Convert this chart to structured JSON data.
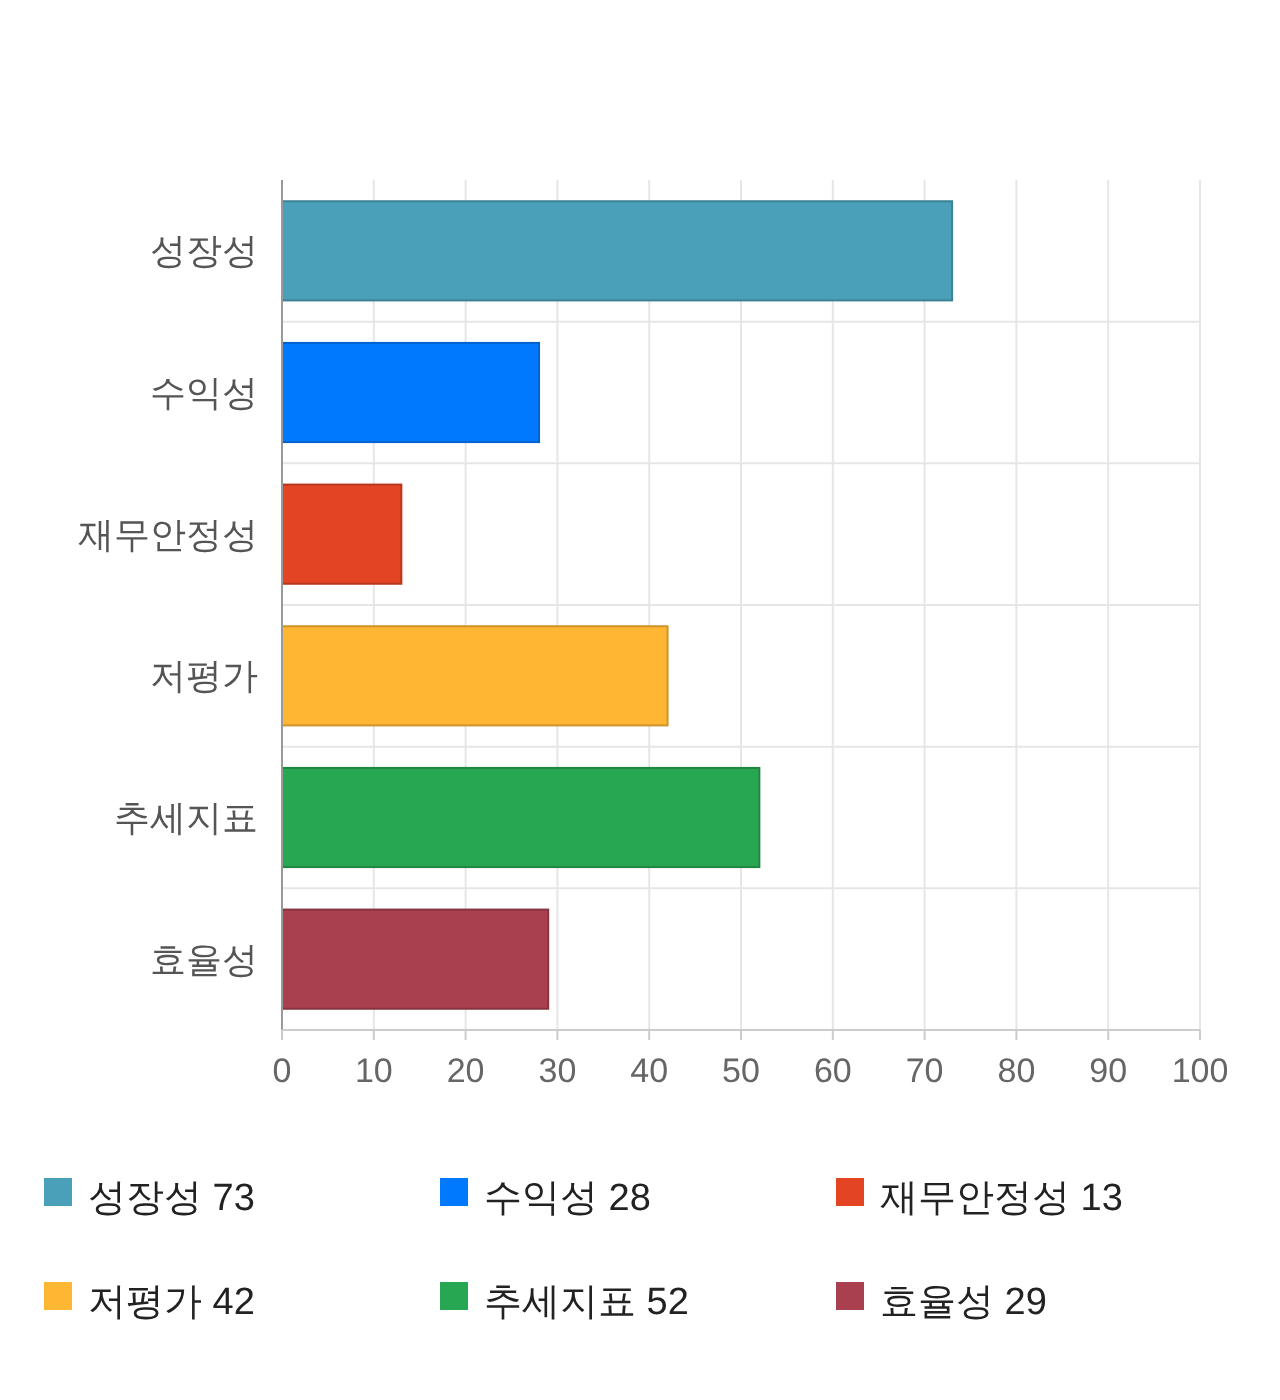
{
  "chart_data": {
    "type": "bar",
    "orientation": "horizontal",
    "categories": [
      "성장성",
      "수익성",
      "재무안정성",
      "저평가",
      "추세지표",
      "효율성"
    ],
    "series": [
      {
        "name": "성장성 73",
        "color": "#4aa0b9",
        "values": [
          73,
          null,
          null,
          null,
          null,
          null
        ]
      },
      {
        "name": "수익성 28",
        "color": "#0079ff",
        "values": [
          null,
          28,
          null,
          null,
          null,
          null
        ]
      },
      {
        "name": "재무안정성 13",
        "color": "#e34423",
        "values": [
          null,
          null,
          13,
          null,
          null,
          null
        ]
      },
      {
        "name": "저평가 42",
        "color": "#ffb733",
        "values": [
          null,
          null,
          null,
          42,
          null,
          null
        ]
      },
      {
        "name": "추세지표 52",
        "color": "#27a752",
        "values": [
          null,
          null,
          null,
          null,
          52,
          null
        ]
      },
      {
        "name": "효율성 29",
        "color": "#a8404f",
        "values": [
          null,
          null,
          null,
          null,
          null,
          29
        ]
      }
    ],
    "xlim": [
      0,
      100
    ],
    "xticks": [
      0,
      10,
      20,
      30,
      40,
      50,
      60,
      70,
      80,
      90,
      100
    ],
    "grid": true,
    "legend": "bottom"
  }
}
